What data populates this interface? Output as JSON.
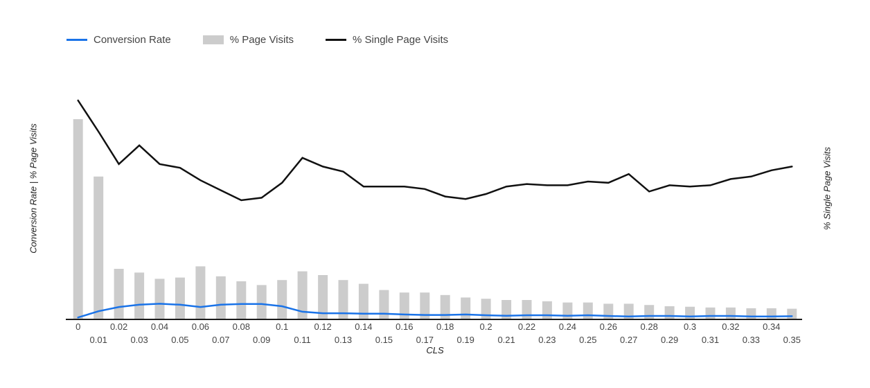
{
  "legend": {
    "items": [
      {
        "label": "Conversion Rate",
        "type": "line",
        "color": "#1a73e8"
      },
      {
        "label": "% Page Visits",
        "type": "bar",
        "color": "#cccccc"
      },
      {
        "label": "% Single Page Visits",
        "type": "line",
        "color": "#111111"
      }
    ]
  },
  "axes": {
    "x_title": "CLS",
    "y_left_title": "Conversion Rate | % Page Visits",
    "y_right_title": "% Single Page Visits"
  },
  "chart_data": {
    "type": "combo",
    "title": "",
    "xlabel": "CLS",
    "ylabel_left": "Conversion Rate | % Page Visits",
    "ylabel_right": "% Single Page Visits",
    "grid": false,
    "legend_position": "top-left",
    "axis_note": "Neither vertical axis shows numeric tick labels; series values are estimated as percent of full plot height (0-100 normalized scale).",
    "ylim_left": [
      0,
      100
    ],
    "ylim_right": [
      0,
      100
    ],
    "categories": [
      "0",
      "0.01",
      "0.02",
      "0.03",
      "0.04",
      "0.05",
      "0.06",
      "0.07",
      "0.08",
      "0.09",
      "0.1",
      "0.11",
      "0.12",
      "0.13",
      "0.14",
      "0.15",
      "0.16",
      "0.17",
      "0.18",
      "0.19",
      "0.2",
      "0.21",
      "0.22",
      "0.23",
      "0.24",
      "0.25",
      "0.26",
      "0.27",
      "0.28",
      "0.29",
      "0.3",
      "0.31",
      "0.32",
      "0.33",
      "0.34",
      "0.35"
    ],
    "series": [
      {
        "name": "Conversion Rate",
        "type": "line",
        "axis": "left",
        "color": "#1a73e8",
        "values": [
          0.5,
          3,
          4.7,
          5.6,
          6,
          5.6,
          4.7,
          5.6,
          5.9,
          5.9,
          5,
          2.8,
          2.2,
          2.2,
          2,
          2,
          1.7,
          1.5,
          1.5,
          1.7,
          1.4,
          1.2,
          1.4,
          1.4,
          1.2,
          1.4,
          1.1,
          0.9,
          1.1,
          1.1,
          0.9,
          1.1,
          1.1,
          0.9,
          0.9,
          1
        ]
      },
      {
        "name": "% Page Visits",
        "type": "bar",
        "axis": "left",
        "color": "#cccccc",
        "values": [
          80,
          57,
          20,
          18.5,
          16,
          16.5,
          21,
          17,
          15,
          13.5,
          15.5,
          19,
          17.5,
          15.5,
          14,
          11.5,
          10.5,
          10.5,
          9.5,
          8.5,
          8,
          7.5,
          7.5,
          7,
          6.5,
          6.5,
          6,
          6,
          5.5,
          5,
          4.8,
          4.5,
          4.5,
          4.2,
          4.2,
          4
        ]
      },
      {
        "name": "% Single Page Visits",
        "type": "line",
        "axis": "right",
        "color": "#111111",
        "values": [
          87.5,
          75,
          62,
          69.5,
          62,
          60.5,
          55.5,
          51.5,
          47.5,
          48.5,
          54.5,
          64.5,
          61,
          59,
          53,
          53,
          53,
          52,
          49,
          48,
          50,
          53,
          54,
          53.5,
          53.5,
          55,
          54.5,
          58,
          51,
          53.5,
          53,
          53.5,
          56,
          57,
          59.5,
          61
        ]
      }
    ]
  }
}
